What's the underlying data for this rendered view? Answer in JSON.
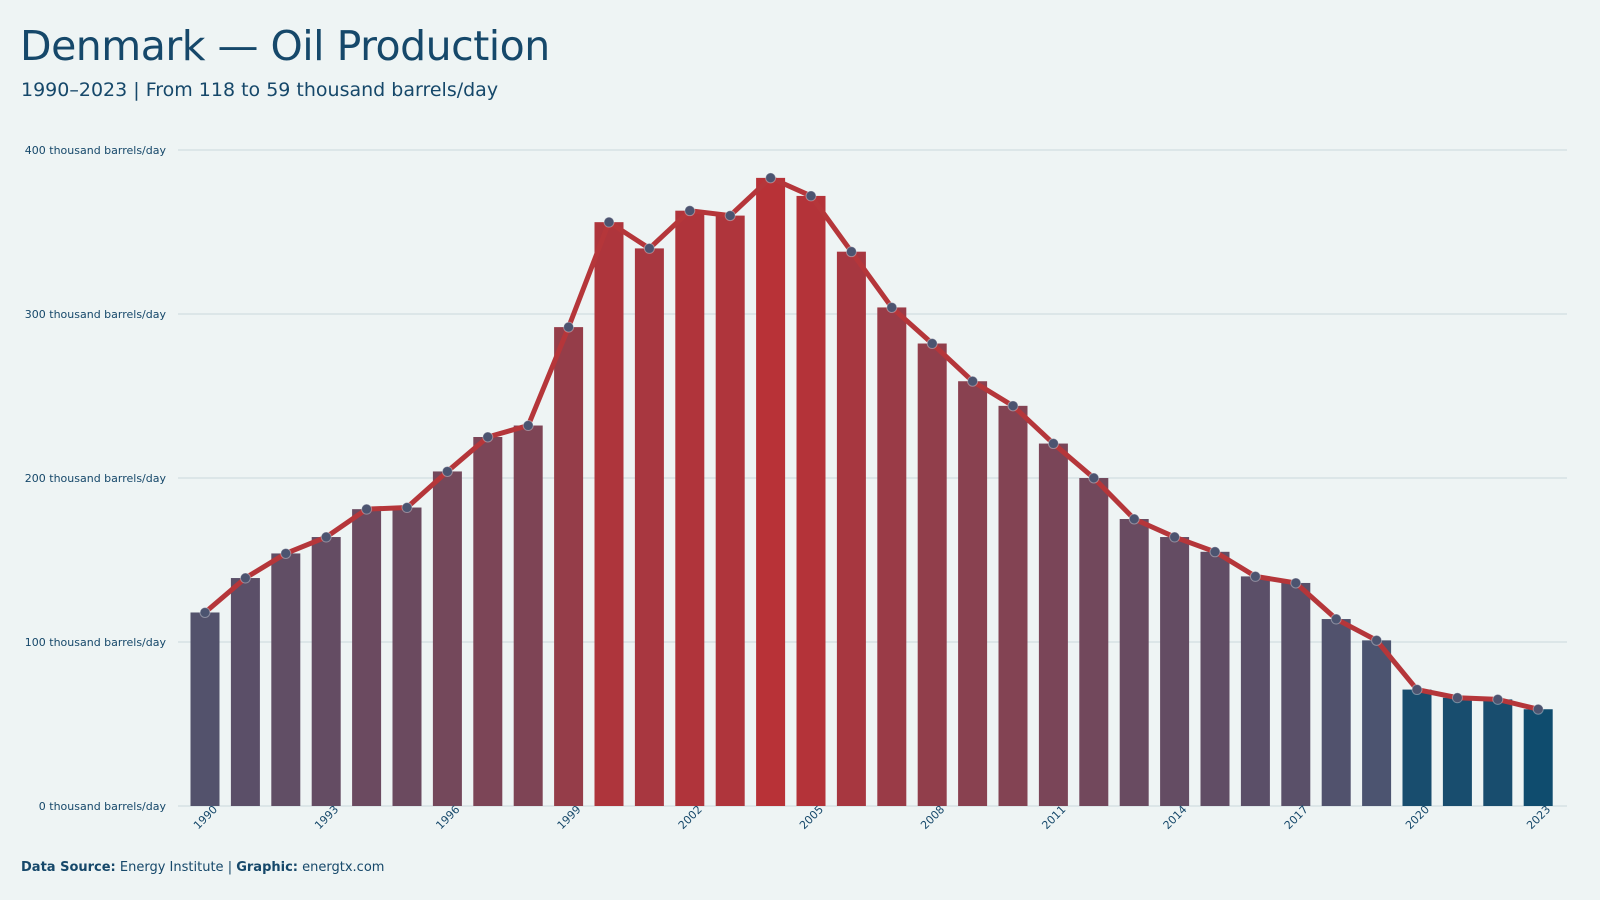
{
  "header": {
    "title": "Denmark — Oil Production",
    "subtitle": "1990–2023 | From 118 to 59 thousand barrels/day"
  },
  "footer": {
    "source_label": "Data Source:",
    "source_value": "Energy Institute",
    "separator": "|",
    "graphic_label": "Graphic:",
    "graphic_value": "energtx.com"
  },
  "colors": {
    "background": "#eef4f4",
    "text": "#16486a",
    "line": "#b5363a",
    "peak_bar": "#b83237",
    "low_bar": "#4c5470",
    "recent_bar": "#0f4c6e",
    "marker": "#4c5470",
    "grid": "#c9d9dc"
  },
  "chart_data": {
    "type": "bar",
    "overlay": "line",
    "x": [
      1990,
      1991,
      1992,
      1993,
      1994,
      1995,
      1996,
      1997,
      1998,
      1999,
      2000,
      2001,
      2002,
      2003,
      2004,
      2005,
      2006,
      2007,
      2008,
      2009,
      2010,
      2011,
      2012,
      2013,
      2014,
      2015,
      2016,
      2017,
      2018,
      2019,
      2020,
      2021,
      2022,
      2023
    ],
    "values": [
      118,
      139,
      154,
      164,
      181,
      182,
      204,
      225,
      232,
      292,
      356,
      340,
      363,
      360,
      383,
      372,
      338,
      304,
      282,
      259,
      244,
      221,
      200,
      175,
      164,
      155,
      140,
      136,
      114,
      101,
      71,
      66,
      65,
      59
    ],
    "x_tick_labels": [
      "1990",
      "1993",
      "1996",
      "1999",
      "2002",
      "2005",
      "2008",
      "2011",
      "2014",
      "2017",
      "2020",
      "2023"
    ],
    "y_ticks": [
      0,
      100,
      200,
      300,
      400
    ],
    "y_tick_labels": [
      "0 thousand barrels/day",
      "100 thousand barrels/day",
      "200 thousand barrels/day",
      "300 thousand barrels/day",
      "400 thousand barrels/day"
    ],
    "ylim": [
      0,
      400
    ],
    "grid": "horizontal"
  }
}
